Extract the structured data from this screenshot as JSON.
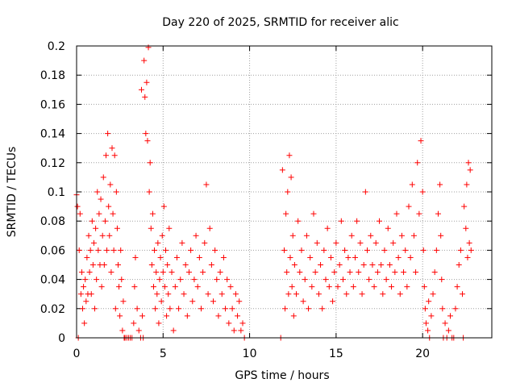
{
  "chart_data": {
    "type": "scatter",
    "title": "Day 220 of 2025, SRMTID for receiver alic",
    "xlabel": "GPS time / hours",
    "ylabel": "SRMTID / TECUs",
    "xlim": [
      0,
      24
    ],
    "ylim": [
      0,
      0.2
    ],
    "xticks": [
      0,
      5,
      10,
      15,
      20
    ],
    "yticks": [
      0,
      0.02,
      0.04,
      0.06,
      0.08,
      0.1,
      0.12,
      0.14,
      0.16,
      0.18,
      0.2
    ],
    "xtick_labels": [
      "0",
      "5",
      "10",
      "15",
      "20"
    ],
    "ytick_labels": [
      "0",
      "0.02",
      "0.04",
      "0.06",
      "0.08",
      "0.1",
      "0.12",
      "0.14",
      "0.16",
      "0.18",
      "0.2"
    ],
    "grid": true,
    "marker": "+",
    "color": "#ff0000",
    "points": [
      [
        0.0,
        0.098
      ],
      [
        0.05,
        0.09
      ],
      [
        0.1,
        0.0
      ],
      [
        0.15,
        0.06
      ],
      [
        0.2,
        0.085
      ],
      [
        0.25,
        0.03
      ],
      [
        0.3,
        0.045
      ],
      [
        0.35,
        0.02
      ],
      [
        0.4,
        0.035
      ],
      [
        0.45,
        0.01
      ],
      [
        0.5,
        0.04
      ],
      [
        0.55,
        0.025
      ],
      [
        0.6,
        0.055
      ],
      [
        0.65,
        0.03
      ],
      [
        0.7,
        0.07
      ],
      [
        0.75,
        0.045
      ],
      [
        0.8,
        0.06
      ],
      [
        0.85,
        0.03
      ],
      [
        0.9,
        0.08
      ],
      [
        0.95,
        0.05
      ],
      [
        1.0,
        0.065
      ],
      [
        1.05,
        0.02
      ],
      [
        1.1,
        0.075
      ],
      [
        1.15,
        0.04
      ],
      [
        1.2,
        0.1
      ],
      [
        1.25,
        0.06
      ],
      [
        1.3,
        0.085
      ],
      [
        1.35,
        0.05
      ],
      [
        1.4,
        0.095
      ],
      [
        1.45,
        0.035
      ],
      [
        1.5,
        0.07
      ],
      [
        1.55,
        0.11
      ],
      [
        1.6,
        0.05
      ],
      [
        1.65,
        0.08
      ],
      [
        1.7,
        0.125
      ],
      [
        1.75,
        0.06
      ],
      [
        1.8,
        0.14
      ],
      [
        1.85,
        0.09
      ],
      [
        1.9,
        0.07
      ],
      [
        1.95,
        0.105
      ],
      [
        2.0,
        0.045
      ],
      [
        2.05,
        0.13
      ],
      [
        2.1,
        0.085
      ],
      [
        2.15,
        0.06
      ],
      [
        2.2,
        0.125
      ],
      [
        2.25,
        0.02
      ],
      [
        2.3,
        0.1
      ],
      [
        2.35,
        0.075
      ],
      [
        2.4,
        0.05
      ],
      [
        2.45,
        0.035
      ],
      [
        2.5,
        0.015
      ],
      [
        2.55,
        0.06
      ],
      [
        2.6,
        0.04
      ],
      [
        2.65,
        0.005
      ],
      [
        2.7,
        0.025
      ],
      [
        2.75,
        0.0
      ],
      [
        2.8,
        0.0
      ],
      [
        2.9,
        0.0
      ],
      [
        3.0,
        0.0
      ],
      [
        3.1,
        0.0
      ],
      [
        3.2,
        0.0
      ],
      [
        3.3,
        0.01
      ],
      [
        3.35,
        0.035
      ],
      [
        3.4,
        0.055
      ],
      [
        3.5,
        0.02
      ],
      [
        3.6,
        0.005
      ],
      [
        3.7,
        0.0
      ],
      [
        3.75,
        0.17
      ],
      [
        3.8,
        0.015
      ],
      [
        3.85,
        0.0
      ],
      [
        3.9,
        0.19
      ],
      [
        3.95,
        0.165
      ],
      [
        4.0,
        0.14
      ],
      [
        4.05,
        0.175
      ],
      [
        4.1,
        0.135
      ],
      [
        4.15,
        0.199
      ],
      [
        4.2,
        0.1
      ],
      [
        4.25,
        0.12
      ],
      [
        4.3,
        0.075
      ],
      [
        4.35,
        0.05
      ],
      [
        4.4,
        0.085
      ],
      [
        4.45,
        0.035
      ],
      [
        4.5,
        0.06
      ],
      [
        4.55,
        0.02
      ],
      [
        4.6,
        0.045
      ],
      [
        4.65,
        0.03
      ],
      [
        4.7,
        0.065
      ],
      [
        4.75,
        0.01
      ],
      [
        4.8,
        0.04
      ],
      [
        4.85,
        0.055
      ],
      [
        4.9,
        0.025
      ],
      [
        4.95,
        0.07
      ],
      [
        5.0,
        0.045
      ],
      [
        5.05,
        0.09
      ],
      [
        5.1,
        0.035
      ],
      [
        5.15,
        0.06
      ],
      [
        5.2,
        0.015
      ],
      [
        5.25,
        0.05
      ],
      [
        5.3,
        0.03
      ],
      [
        5.35,
        0.075
      ],
      [
        5.4,
        0.02
      ],
      [
        5.5,
        0.045
      ],
      [
        5.6,
        0.005
      ],
      [
        5.7,
        0.035
      ],
      [
        5.8,
        0.055
      ],
      [
        5.9,
        0.02
      ],
      [
        6.0,
        0.04
      ],
      [
        6.1,
        0.065
      ],
      [
        6.2,
        0.03
      ],
      [
        6.3,
        0.05
      ],
      [
        6.4,
        0.015
      ],
      [
        6.5,
        0.045
      ],
      [
        6.6,
        0.06
      ],
      [
        6.7,
        0.025
      ],
      [
        6.8,
        0.04
      ],
      [
        6.9,
        0.07
      ],
      [
        7.0,
        0.035
      ],
      [
        7.1,
        0.055
      ],
      [
        7.2,
        0.02
      ],
      [
        7.3,
        0.045
      ],
      [
        7.4,
        0.065
      ],
      [
        7.5,
        0.105
      ],
      [
        7.6,
        0.03
      ],
      [
        7.7,
        0.075
      ],
      [
        7.8,
        0.05
      ],
      [
        7.9,
        0.025
      ],
      [
        8.0,
        0.06
      ],
      [
        8.1,
        0.04
      ],
      [
        8.2,
        0.015
      ],
      [
        8.3,
        0.045
      ],
      [
        8.4,
        0.03
      ],
      [
        8.5,
        0.055
      ],
      [
        8.6,
        0.02
      ],
      [
        8.7,
        0.04
      ],
      [
        8.8,
        0.01
      ],
      [
        8.9,
        0.035
      ],
      [
        9.0,
        0.02
      ],
      [
        9.1,
        0.005
      ],
      [
        9.2,
        0.03
      ],
      [
        9.3,
        0.015
      ],
      [
        9.4,
        0.025
      ],
      [
        9.5,
        0.005
      ],
      [
        9.6,
        0.01
      ],
      [
        9.7,
        0.0
      ],
      [
        11.8,
        0.0
      ],
      [
        11.9,
        0.115
      ],
      [
        12.0,
        0.06
      ],
      [
        12.05,
        0.02
      ],
      [
        12.1,
        0.085
      ],
      [
        12.15,
        0.045
      ],
      [
        12.2,
        0.1
      ],
      [
        12.25,
        0.03
      ],
      [
        12.3,
        0.125
      ],
      [
        12.35,
        0.055
      ],
      [
        12.4,
        0.11
      ],
      [
        12.45,
        0.035
      ],
      [
        12.5,
        0.07
      ],
      [
        12.55,
        0.015
      ],
      [
        12.6,
        0.05
      ],
      [
        12.7,
        0.03
      ],
      [
        12.8,
        0.08
      ],
      [
        12.9,
        0.045
      ],
      [
        13.0,
        0.06
      ],
      [
        13.1,
        0.025
      ],
      [
        13.2,
        0.04
      ],
      [
        13.3,
        0.07
      ],
      [
        13.4,
        0.02
      ],
      [
        13.5,
        0.055
      ],
      [
        13.6,
        0.035
      ],
      [
        13.7,
        0.085
      ],
      [
        13.8,
        0.045
      ],
      [
        13.9,
        0.065
      ],
      [
        14.0,
        0.03
      ],
      [
        14.1,
        0.05
      ],
      [
        14.2,
        0.02
      ],
      [
        14.3,
        0.06
      ],
      [
        14.4,
        0.04
      ],
      [
        14.5,
        0.075
      ],
      [
        14.6,
        0.035
      ],
      [
        14.7,
        0.055
      ],
      [
        14.8,
        0.025
      ],
      [
        14.9,
        0.045
      ],
      [
        15.0,
        0.065
      ],
      [
        15.1,
        0.035
      ],
      [
        15.2,
        0.05
      ],
      [
        15.3,
        0.08
      ],
      [
        15.4,
        0.04
      ],
      [
        15.5,
        0.06
      ],
      [
        15.6,
        0.03
      ],
      [
        15.7,
        0.055
      ],
      [
        15.8,
        0.045
      ],
      [
        15.9,
        0.07
      ],
      [
        16.0,
        0.035
      ],
      [
        16.1,
        0.055
      ],
      [
        16.2,
        0.08
      ],
      [
        16.3,
        0.045
      ],
      [
        16.4,
        0.065
      ],
      [
        16.5,
        0.03
      ],
      [
        16.6,
        0.05
      ],
      [
        16.7,
        0.1
      ],
      [
        16.8,
        0.06
      ],
      [
        16.9,
        0.04
      ],
      [
        17.0,
        0.07
      ],
      [
        17.1,
        0.05
      ],
      [
        17.2,
        0.035
      ],
      [
        17.3,
        0.065
      ],
      [
        17.4,
        0.045
      ],
      [
        17.5,
        0.08
      ],
      [
        17.6,
        0.05
      ],
      [
        17.7,
        0.03
      ],
      [
        17.8,
        0.06
      ],
      [
        17.9,
        0.04
      ],
      [
        18.0,
        0.075
      ],
      [
        18.1,
        0.05
      ],
      [
        18.2,
        0.035
      ],
      [
        18.3,
        0.065
      ],
      [
        18.4,
        0.045
      ],
      [
        18.5,
        0.085
      ],
      [
        18.6,
        0.055
      ],
      [
        18.7,
        0.03
      ],
      [
        18.8,
        0.07
      ],
      [
        18.9,
        0.045
      ],
      [
        19.0,
        0.06
      ],
      [
        19.1,
        0.035
      ],
      [
        19.2,
        0.09
      ],
      [
        19.3,
        0.055
      ],
      [
        19.4,
        0.105
      ],
      [
        19.5,
        0.07
      ],
      [
        19.6,
        0.045
      ],
      [
        19.7,
        0.12
      ],
      [
        19.8,
        0.085
      ],
      [
        19.9,
        0.135
      ],
      [
        20.0,
        0.1
      ],
      [
        20.05,
        0.06
      ],
      [
        20.1,
        0.035
      ],
      [
        20.15,
        0.02
      ],
      [
        20.2,
        0.01
      ],
      [
        20.3,
        0.005
      ],
      [
        20.35,
        0.025
      ],
      [
        20.4,
        0.0
      ],
      [
        20.5,
        0.015
      ],
      [
        20.6,
        0.03
      ],
      [
        20.7,
        0.045
      ],
      [
        20.8,
        0.06
      ],
      [
        20.9,
        0.085
      ],
      [
        21.0,
        0.105
      ],
      [
        21.05,
        0.07
      ],
      [
        21.1,
        0.04
      ],
      [
        21.15,
        0.02
      ],
      [
        21.2,
        0.0
      ],
      [
        21.3,
        0.01
      ],
      [
        21.4,
        0.0
      ],
      [
        21.5,
        0.005
      ],
      [
        21.6,
        0.015
      ],
      [
        21.7,
        0.0
      ],
      [
        21.8,
        0.0
      ],
      [
        21.9,
        0.02
      ],
      [
        22.0,
        0.035
      ],
      [
        22.1,
        0.05
      ],
      [
        22.2,
        0.06
      ],
      [
        22.3,
        0.03
      ],
      [
        22.35,
        0.0
      ],
      [
        22.4,
        0.09
      ],
      [
        22.5,
        0.075
      ],
      [
        22.55,
        0.105
      ],
      [
        22.6,
        0.055
      ],
      [
        22.65,
        0.12
      ],
      [
        22.7,
        0.065
      ],
      [
        22.75,
        0.115
      ],
      [
        22.8,
        0.06
      ]
    ]
  }
}
